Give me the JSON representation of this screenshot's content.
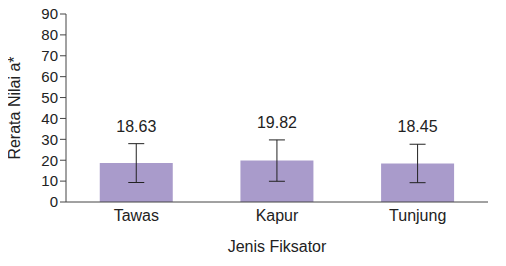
{
  "chart_data": {
    "type": "bar",
    "categories": [
      "Tawas",
      "Kapur",
      "Tunjung"
    ],
    "values": [
      18.63,
      19.82,
      18.45
    ],
    "error": [
      9.3,
      9.9,
      9.2
    ],
    "color": "#a99bcb",
    "xlabel": "Jenis Fiksator",
    "ylabel": "Rerata Nilai a*",
    "ylim": [
      0,
      90
    ],
    "yticks": [
      0,
      10,
      20,
      30,
      40,
      50,
      60,
      70,
      80,
      90
    ],
    "grid": false,
    "data_labels": true
  }
}
